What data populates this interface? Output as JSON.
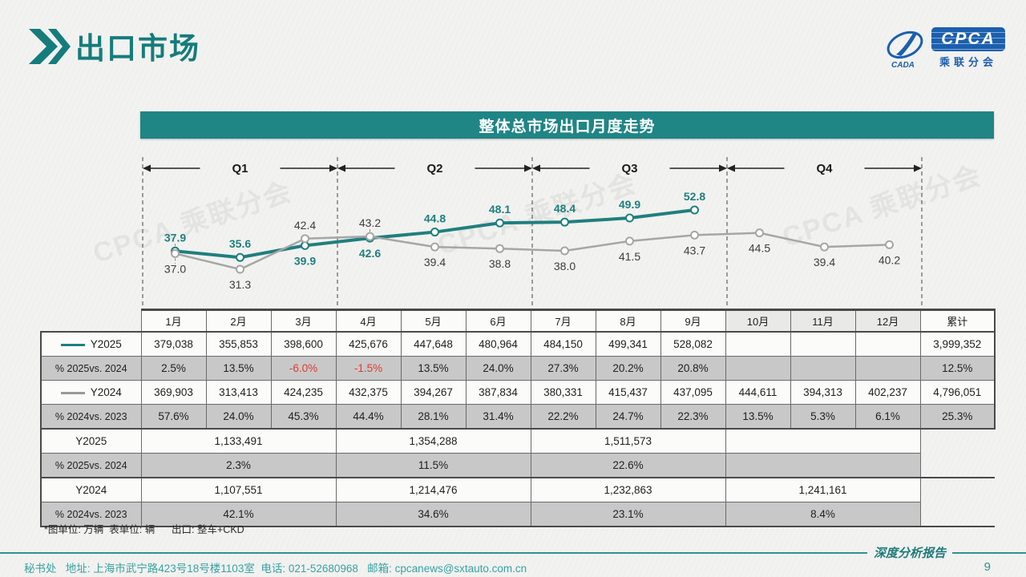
{
  "page": {
    "title": "出口市场",
    "banner_title": "整体总市场出口月度走势",
    "footnote": "*图单位: 万辆  表单位: 辆      出口: 整车+CKD",
    "footer_contact": "秘书处   地址: 上海市武宁路423号18号楼1103室  电话: 021-52680968   邮箱: cpcanews@sxtauto.com.cn",
    "report_label": "深度分析报告",
    "page_number": "9"
  },
  "logo": {
    "brand": "CPCA",
    "sub_brand": "乘联分会",
    "emblem_text": "CADA",
    "brand_color": "#1b5fae"
  },
  "theme": {
    "accent_teal": "#1f8585",
    "title_teal": "#157c7c",
    "shaded_row_gray": "#c8c8c8",
    "negative_red": "#e03a32"
  },
  "watermark_text": "CPCA 乘联分会",
  "chart_data": {
    "type": "line",
    "title": "整体总市场出口月度走势",
    "unit_note": "万辆",
    "x_months": [
      1,
      2,
      3,
      4,
      5,
      6,
      7,
      8,
      9,
      10,
      11,
      12
    ],
    "quarters": [
      "Q1",
      "Q2",
      "Q3",
      "Q4"
    ],
    "ylim": [
      28,
      56
    ],
    "grid": false,
    "legend_position": "table-left",
    "series": [
      {
        "name": "Y2025",
        "color": "#1f7f7f",
        "label_color": "#1f7f7f",
        "values": [
          37.9,
          35.6,
          39.9,
          42.6,
          44.8,
          48.1,
          48.4,
          49.9,
          52.8
        ],
        "label_side": [
          "above",
          "above",
          "below",
          "below",
          "above",
          "above",
          "above",
          "above",
          "above"
        ]
      },
      {
        "name": "Y2024",
        "color": "#a6a6a6",
        "label_color": "#3d3d3d",
        "values": [
          37.0,
          31.3,
          42.4,
          43.2,
          39.4,
          38.8,
          38.0,
          41.5,
          43.7,
          44.5,
          39.4,
          40.2
        ],
        "label_side": [
          "below",
          "below",
          "above",
          "above",
          "below",
          "below",
          "below",
          "below",
          "below",
          "below",
          "below",
          "below"
        ]
      }
    ],
    "leader_points": [
      [
        0,
        0
      ],
      [
        1,
        0
      ],
      [
        1,
        3
      ]
    ]
  },
  "table": {
    "columns": [
      "1月",
      "2月",
      "3月",
      "4月",
      "5月",
      "6月",
      "7月",
      "8月",
      "9月",
      "10月",
      "11月",
      "12月",
      "累计"
    ],
    "monthly_rows": [
      {
        "label": "Y2025",
        "swatch": "#1f7f7f",
        "shaded": false,
        "cells": [
          "379,038",
          "355,853",
          "398,600",
          "425,676",
          "447,648",
          "480,964",
          "484,150",
          "499,341",
          "528,082",
          "",
          "",
          "",
          "3,999,352"
        ]
      },
      {
        "label": "% 2025vs. 2024",
        "shaded": true,
        "cells": [
          "2.5%",
          "13.5%",
          "-6.0%",
          "-1.5%",
          "13.5%",
          "24.0%",
          "27.3%",
          "20.2%",
          "20.8%",
          "",
          "",
          "",
          "12.5%"
        ]
      },
      {
        "label": "Y2024",
        "swatch": "#9a9a9a",
        "shaded": false,
        "cells": [
          "369,903",
          "313,413",
          "424,235",
          "432,375",
          "394,267",
          "387,834",
          "380,331",
          "415,437",
          "437,095",
          "444,611",
          "394,313",
          "402,237",
          "4,796,051"
        ]
      },
      {
        "label": "% 2024vs. 2023",
        "shaded": true,
        "cells": [
          "57.6%",
          "24.0%",
          "45.3%",
          "44.4%",
          "28.1%",
          "31.4%",
          "22.2%",
          "24.7%",
          "22.3%",
          "13.5%",
          "5.3%",
          "6.1%",
          "25.3%"
        ]
      }
    ],
    "quarterly_rows": [
      {
        "label": "Y2025",
        "shaded": false,
        "cells": [
          "1,133,491",
          "1,354,288",
          "1,511,573",
          ""
        ]
      },
      {
        "label": "% 2025vs. 2024",
        "shaded": true,
        "cells": [
          "2.3%",
          "11.5%",
          "22.6%",
          ""
        ]
      },
      {
        "label": "Y2024",
        "shaded": false,
        "cells": [
          "1,107,551",
          "1,214,476",
          "1,232,863",
          "1,241,161"
        ]
      },
      {
        "label": "% 2024vs. 2023",
        "shaded": true,
        "cells": [
          "42.1%",
          "34.6%",
          "23.1%",
          "8.4%"
        ]
      }
    ]
  }
}
